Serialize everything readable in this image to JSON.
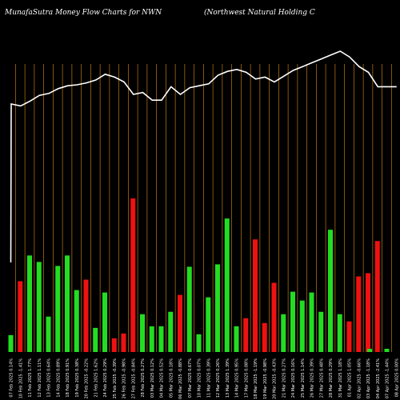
{
  "header": {
    "title_left": "MunafaSutra  Money Flow  Charts for NWN",
    "title_right": "(Northwest Natural Holding C"
  },
  "chart_data": {
    "type": "bar",
    "title": "MunafaSutra  Money Flow  Charts for NWN",
    "subtitle": "(Northwest Natural Holding C",
    "colors": {
      "up": "#22dd22",
      "down": "#ee1111",
      "price_line": "#ffffff",
      "grid": "#c07810",
      "background": "#000000"
    },
    "ylim": [
      0,
      200
    ],
    "categories": [
      "07 Feb 2025",
      "10 Feb 2025",
      "11 Feb 2025",
      "12 Feb 2025",
      "13 Feb 2025",
      "14 Feb 2025",
      "18 Feb 2025",
      "19 Feb 2025",
      "20 Feb 2025",
      "21 Feb 2025",
      "24 Feb 2025",
      "25 Feb 2025",
      "26 Feb 2025",
      "27 Feb 2025",
      "28 Feb 2025",
      "03 Mar 2025",
      "04 Mar 2025",
      "05 Mar 2025",
      "06 Mar 2025",
      "07 Mar 2025",
      "10 Mar 2025",
      "11 Mar 2025",
      "12 Mar 2025",
      "13 Mar 2025",
      "14 Mar 2025",
      "17 Mar 2025",
      "18 Mar 2025",
      "19 Mar 2025",
      "20 Mar 2025",
      "21 Mar 2025",
      "24 Mar 2025",
      "25 Mar 2025",
      "26 Mar 2025",
      "27 Mar 2025",
      "28 Mar 2025",
      "31 Mar 2025",
      "01 Apr 2025",
      "02 Apr 2025",
      "03 Apr 2025",
      "04 Apr 2025",
      "07 Apr 2025",
      "08 Apr 2025"
    ],
    "volume_values": [
      21,
      88,
      120,
      112,
      44,
      107,
      120,
      77,
      90,
      30,
      74,
      17,
      23,
      191,
      47,
      32,
      32,
      50,
      71,
      106,
      22,
      68,
      109,
      166,
      32,
      42,
      140,
      36,
      86,
      47,
      75,
      64,
      74,
      50,
      152,
      47,
      38,
      94,
      98,
      138,
      4,
      0
    ],
    "volume_colors": [
      "up",
      "down",
      "up",
      "up",
      "up",
      "up",
      "up",
      "up",
      "down",
      "up",
      "up",
      "down",
      "down",
      "down",
      "up",
      "up",
      "up",
      "up",
      "down",
      "up",
      "up",
      "up",
      "up",
      "up",
      "up",
      "down",
      "down",
      "down",
      "down",
      "up",
      "up",
      "up",
      "up",
      "up",
      "up",
      "up",
      "down",
      "down",
      "down",
      "down",
      "up",
      "up"
    ],
    "price_values": [
      21.0,
      20.6,
      21.6,
      22.8,
      23.2,
      24.2,
      24.8,
      25.0,
      25.4,
      26.0,
      27.2,
      26.6,
      25.6,
      23.0,
      23.4,
      21.8,
      21.8,
      24.6,
      23.0,
      24.4,
      24.8,
      25.2,
      27.0,
      27.8,
      28.2,
      27.6,
      26.2,
      26.6,
      25.6,
      26.8,
      28.0,
      28.8,
      29.6,
      30.4,
      31.2,
      32.0,
      30.8,
      28.8,
      27.6,
      24.6,
      24.6,
      24.6
    ],
    "price_start": 16.0,
    "price_ylim": [
      0,
      40
    ],
    "x_tick_labels": [
      "07 Feb 2025 0.14%",
      "10 Feb 2025 -1.41%",
      "11 Feb 2025 1.77%",
      "12 Feb 2025 1.11%",
      "13 Feb 2025 0.64%",
      "14 Feb 2025 0.89%",
      "18 Feb 2025 0.91%",
      "19 Feb 2025 0.38%",
      "20 Feb 2025 -0.22%",
      "21 Feb 2025 1.62%",
      "24 Feb 2025 0.29%",
      "25 Feb 2025 -0.39%",
      "26 Feb 2025 -0.98%",
      "27 Feb 2025 -0.84%",
      "28 Feb 2025 0.27%",
      "03 Mar 2025 0.12%",
      "04 Mar 2025 0.52%",
      "05 Mar 2025 0.18%",
      "06 Mar 2025 -0.88%",
      "07 Mar 2025 0.67%",
      "10 Mar 2025 0.07%",
      "11 Mar 2025 0.39%",
      "12 Mar 2025 0.26%",
      "13 Mar 2025 1.39%",
      "14 Mar 2025 0.95%",
      "17 Mar 2025 0.08%",
      "18 Mar 2025 -1.19%",
      "19 Mar 2025 -0.98%",
      "20 Mar 2025 -0.43%",
      "21 Mar 2025 0.27%",
      "24 Mar 2025 0.16%",
      "25 Mar 2025 1.14%",
      "26 Mar 2025 0.39%",
      "27 Mar 2025 0.48%",
      "28 Mar 2025 0.29%",
      "31 Mar 2025 1.18%",
      "01 Apr 2025 1.05%",
      "02 Apr 2025 -0.66%",
      "03 Apr 2025 -1.18%",
      "04 Apr 2025 -2.41%",
      "07 Apr 2025 -1.44%",
      "08 Apr 2025 0.00%"
    ],
    "grid": true,
    "legend": "none"
  }
}
